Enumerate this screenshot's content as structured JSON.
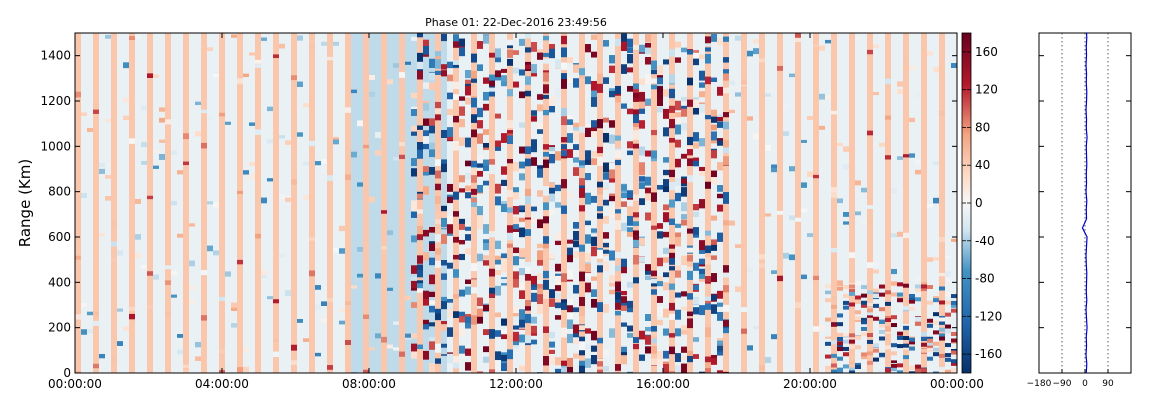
{
  "chart_data": [
    {
      "type": "heatmap",
      "title": "Phase 01: 22-Dec-2016 23:49:56",
      "xlabel": "",
      "ylabel": "Range (Km)",
      "x_ticks": [
        "00:00:00",
        "04:00:00",
        "08:00:00",
        "12:00:00",
        "16:00:00",
        "20:00:00",
        "00:00:00"
      ],
      "x_range_hours": [
        0,
        24
      ],
      "y_ticks": [
        0,
        200,
        400,
        600,
        800,
        1000,
        1200,
        1400
      ],
      "ylim": [
        0,
        1500
      ],
      "colormap": "RdBu_r",
      "colorbar": {
        "ticks": [
          -160,
          -120,
          -80,
          -40,
          0,
          40,
          80,
          120,
          160
        ],
        "range": [
          -180,
          180
        ]
      },
      "grid": false
    },
    {
      "type": "line",
      "title": "",
      "xlabel": "",
      "ylabel": "",
      "x_ticks": [
        -180,
        -90,
        0,
        90
      ],
      "xlim": [
        -180,
        180
      ],
      "ylim": [
        0,
        1500
      ],
      "reference_lines_x": [
        -90,
        0,
        90
      ],
      "series": [
        {
          "color": "#0000cc",
          "x": [
            5,
            7,
            4,
            6,
            5,
            8,
            6,
            4,
            7,
            5,
            6,
            7,
            5,
            4,
            6,
            8,
            -10,
            6,
            5,
            7,
            4,
            6,
            5,
            7,
            6,
            5,
            8,
            5,
            6,
            4,
            6,
            7,
            5,
            6,
            4,
            6,
            5,
            7,
            6,
            5
          ],
          "y": [
            0,
            40,
            80,
            120,
            160,
            200,
            240,
            280,
            320,
            360,
            400,
            440,
            480,
            520,
            560,
            600,
            640,
            680,
            720,
            760,
            800,
            840,
            880,
            920,
            960,
            1000,
            1040,
            1080,
            1120,
            1160,
            1200,
            1240,
            1280,
            1320,
            1360,
            1400,
            1440,
            1480,
            1500,
            1500
          ]
        }
      ]
    }
  ]
}
